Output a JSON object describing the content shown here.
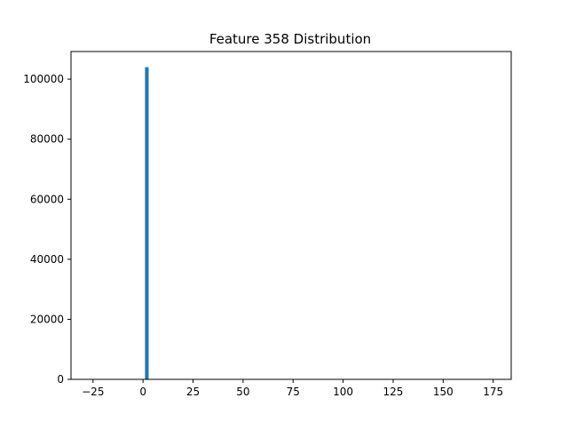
{
  "chart_data": {
    "type": "bar",
    "title": "Feature 358 Distribution",
    "xlabel": "",
    "ylabel": "",
    "xlim": [
      -36,
      184
    ],
    "ylim": [
      0,
      109200
    ],
    "x_ticks": [
      -25,
      0,
      25,
      50,
      75,
      100,
      125,
      150,
      175
    ],
    "x_tick_labels": [
      "−25",
      "0",
      "25",
      "50",
      "75",
      "100",
      "125",
      "150",
      "175"
    ],
    "y_ticks": [
      0,
      20000,
      40000,
      60000,
      80000,
      100000
    ],
    "y_tick_labels": [
      "0",
      "20000",
      "40000",
      "60000",
      "80000",
      "100000"
    ],
    "grid": false,
    "bar_color": "#1f77b4",
    "bins": [
      {
        "x0": 1.0,
        "x1": 2.8,
        "count": 104000
      }
    ]
  }
}
